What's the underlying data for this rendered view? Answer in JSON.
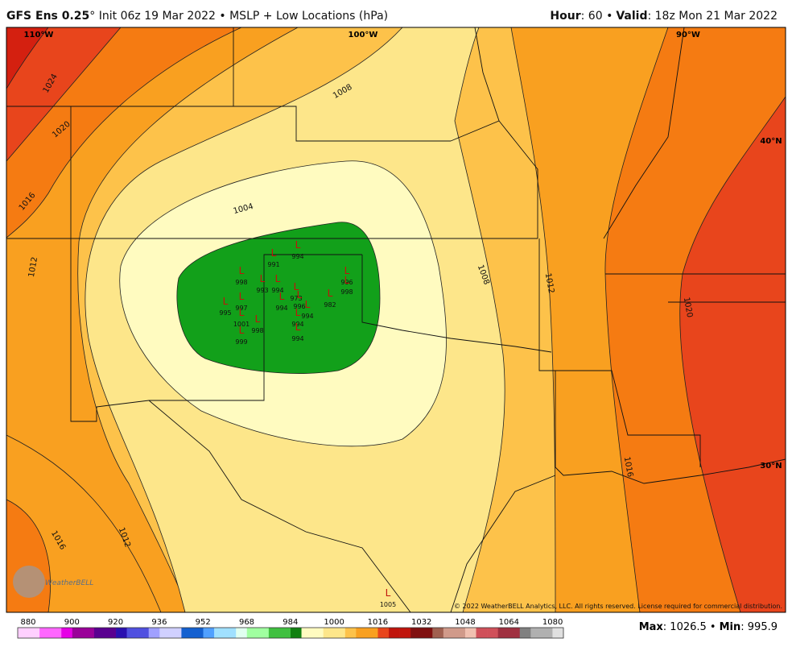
{
  "header": {
    "model": "GFS Ens 0.25",
    "title_rest": "° Init 06z 19 Mar 2022 • MSLP + Low Locations (hPa)",
    "hour_label": "Hour",
    "hour_value": ": 60 •",
    "valid_label": "Valid",
    "valid_value": ": 18z Mon 21 Mar 2022"
  },
  "map": {
    "lon_labels": [
      "110°W",
      "100°W",
      "90°W"
    ],
    "lat_labels": [
      "40°N",
      "30°N"
    ],
    "contour_labels": [
      "1024",
      "1020",
      "1016",
      "1012",
      "1008",
      "1004",
      "1008",
      "1012",
      "1020",
      "1016",
      "1012",
      "1016"
    ],
    "low_symbol": "L",
    "lows": [
      "994",
      "991",
      "998",
      "993",
      "994",
      "973",
      "997",
      "995",
      "994",
      "996",
      "994",
      "982",
      "996",
      "998",
      "1001",
      "998",
      "999",
      "994",
      "994",
      "1005"
    ],
    "copyright": "© 2022 WeatherBELL Analytics, LLC. All rights reserved. License required for commercial distribution.",
    "logo": "WeatherBELL"
  },
  "colorbar": {
    "ticks": [
      "880",
      "900",
      "920",
      "936",
      "952",
      "968",
      "984",
      "1000",
      "1016",
      "1032",
      "1048",
      "1064",
      "1080"
    ]
  },
  "footer": {
    "max_label": "Max",
    "max_value": ": 1026.5 •",
    "min_label": "Min",
    "min_value": ": 995.9"
  }
}
